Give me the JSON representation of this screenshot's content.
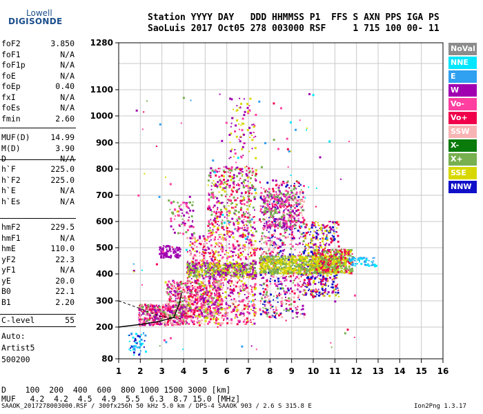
{
  "logo": {
    "line1": "Lowell",
    "line2": "DIGISONDE"
  },
  "header": {
    "line1": "Station YYYY DAY   DDD HHMMSS P1  FFS S AXN PPS IGA PS",
    "line2": "SaoLuis 2017 Oct05 278 003000 RSF     1 715 100 00- 11"
  },
  "params_a": [
    {
      "name": "foF2",
      "value": "3.850"
    },
    {
      "name": "foF1",
      "value": "N/A"
    },
    {
      "name": "foF1p",
      "value": "N/A"
    },
    {
      "name": "foE",
      "value": "N/A"
    },
    {
      "name": "foEp",
      "value": "0.40"
    },
    {
      "name": "fxI",
      "value": "N/A"
    },
    {
      "name": "foEs",
      "value": "N/A"
    },
    {
      "name": "fmin",
      "value": "2.60"
    }
  ],
  "params_b": [
    {
      "name": "MUF(D)",
      "value": "14.99"
    },
    {
      "name": "M(D)",
      "value": "3.90"
    },
    {
      "name": "D",
      "value": "N/A"
    }
  ],
  "params_c": [
    {
      "name": "h`F",
      "value": "225.0"
    },
    {
      "name": "h`F2",
      "value": "225.0"
    },
    {
      "name": "h`E",
      "value": "N/A"
    },
    {
      "name": "h`Es",
      "value": "N/A"
    }
  ],
  "params_d": [
    {
      "name": "hmF2",
      "value": "229.5"
    },
    {
      "name": "hmF1",
      "value": "N/A"
    },
    {
      "name": "hmE",
      "value": "110.0"
    },
    {
      "name": "yF2",
      "value": "22.3"
    },
    {
      "name": "yF1",
      "value": "N/A"
    },
    {
      "name": "yE",
      "value": "20.0"
    },
    {
      "name": "B0",
      "value": "22.1"
    },
    {
      "name": "B1",
      "value": "2.20"
    }
  ],
  "c_level": {
    "name": "C-level",
    "value": "55"
  },
  "auto": {
    "line1": "Auto:",
    "line2": "Artist5",
    "line3": "500200"
  },
  "legend": [
    {
      "label": "NoVal",
      "color": "#8c8c8c"
    },
    {
      "label": "NNE",
      "color": "#00e6ff"
    },
    {
      "label": "E",
      "color": "#30a0f0"
    },
    {
      "label": "W",
      "color": "#a000b0"
    },
    {
      "label": "Vo-",
      "color": "#ff40a0"
    },
    {
      "label": "Vo+",
      "color": "#f0004a"
    },
    {
      "label": "SSW",
      "color": "#f8b4b4"
    },
    {
      "label": "X-",
      "color": "#0a7a0a"
    },
    {
      "label": "X+",
      "color": "#78b050"
    },
    {
      "label": "SSE",
      "color": "#d8d800"
    },
    {
      "label": "NNW",
      "color": "#1010c8"
    }
  ],
  "axes": {
    "x_ticks": [
      "1",
      "2",
      "3",
      "4",
      "5",
      "6",
      "7",
      "8",
      "9",
      "10",
      "11",
      "12",
      "13",
      "14",
      "15",
      "16"
    ],
    "y_ticks": [
      "80",
      "200",
      "300",
      "400",
      "500",
      "600",
      "700",
      "800",
      "900",
      "1000",
      "1100",
      "1280"
    ]
  },
  "bottom_table": {
    "d_row": "D    100  200  400  600  800 1000 1500 3000 [km]",
    "muf_row": "MUF   4.2  4.2  4.5  4.9  5.5  6.3  8.7 15.0 [MHz]"
  },
  "footer": {
    "left": "SAAOK_2017278003000.RSF / 300fx256h 50 kHz 5.0 km / DPS-4 SAAOK 903 / 2.6 S 315.8 E",
    "right": "Ion2Png 1.3.17"
  }
}
